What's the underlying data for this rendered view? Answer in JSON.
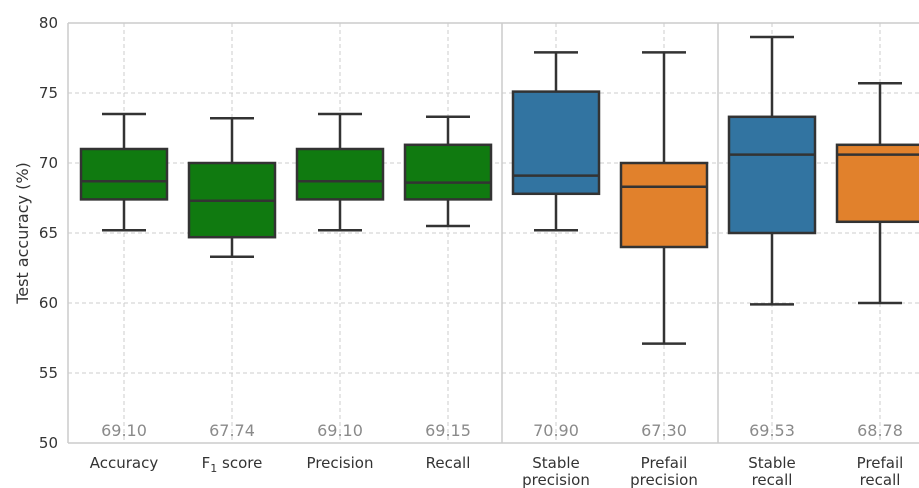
{
  "chart_data": {
    "type": "box",
    "ylabel": "Test accuracy (%)",
    "ylim": [
      50,
      80
    ],
    "yticks": [
      50,
      55,
      60,
      65,
      70,
      75,
      80
    ],
    "grid": true,
    "categories": [
      {
        "label": "Accuracy",
        "label_lines": [
          "Accuracy"
        ],
        "mean_label": "69.10",
        "color": "#107a10",
        "whisker_low": 65.2,
        "q1": 67.4,
        "median": 68.7,
        "q3": 71.0,
        "whisker_high": 73.5
      },
      {
        "label": "F1 score",
        "label_lines": [
          "F1 score"
        ],
        "mean_label": "67.74",
        "color": "#107a10",
        "whisker_low": 63.3,
        "q1": 64.7,
        "median": 67.3,
        "q3": 70.0,
        "whisker_high": 73.2
      },
      {
        "label": "Precision",
        "label_lines": [
          "Precision"
        ],
        "mean_label": "69.10",
        "color": "#107a10",
        "whisker_low": 65.2,
        "q1": 67.4,
        "median": 68.7,
        "q3": 71.0,
        "whisker_high": 73.5
      },
      {
        "label": "Recall",
        "label_lines": [
          "Recall"
        ],
        "mean_label": "69.15",
        "color": "#107a10",
        "whisker_low": 65.5,
        "q1": 67.4,
        "median": 68.6,
        "q3": 71.3,
        "whisker_high": 73.3
      },
      {
        "label": "Stable precision",
        "label_lines": [
          "Stable",
          "precision"
        ],
        "mean_label": "70.90",
        "color": "#3274a1",
        "whisker_low": 65.2,
        "q1": 67.8,
        "median": 69.1,
        "q3": 75.1,
        "whisker_high": 77.9
      },
      {
        "label": "Prefail precision",
        "label_lines": [
          "Prefail",
          "precision"
        ],
        "mean_label": "67.30",
        "color": "#e1812c",
        "whisker_low": 57.1,
        "q1": 64.0,
        "median": 68.3,
        "q3": 70.0,
        "whisker_high": 77.9
      },
      {
        "label": "Stable recall",
        "label_lines": [
          "Stable",
          "recall"
        ],
        "mean_label": "69.53",
        "color": "#3274a1",
        "whisker_low": 59.9,
        "q1": 65.0,
        "median": 70.6,
        "q3": 73.3,
        "whisker_high": 79.0
      },
      {
        "label": "Prefail recall",
        "label_lines": [
          "Prefail",
          "recall"
        ],
        "mean_label": "68.78",
        "color": "#e1812c",
        "whisker_low": 60.0,
        "q1": 65.8,
        "median": 70.6,
        "q3": 71.3,
        "whisker_high": 75.7
      }
    ],
    "group_separators_after": [
      4,
      6
    ]
  }
}
